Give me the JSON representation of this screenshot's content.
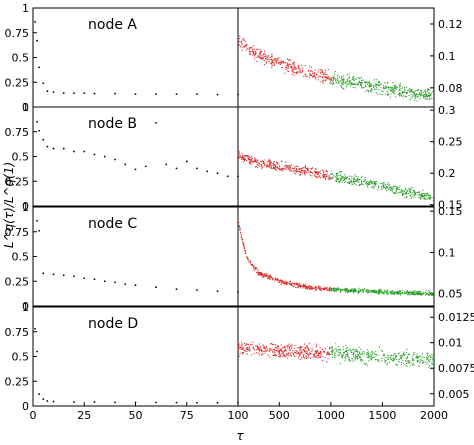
{
  "chart_data": {
    "type": "scatter",
    "ylabel": "L^q(τ)/L^q(1)",
    "xlabel": "τ",
    "left_x_ticks": [
      "0",
      "25",
      "50",
      "75",
      "100"
    ],
    "right_x_ticks": [
      "100",
      "500",
      "1000",
      "1500",
      "2000"
    ],
    "left_x_range": [
      0,
      100
    ],
    "right_x_range": [
      100,
      2000
    ],
    "series_colors": {
      "left": "#000000",
      "right_early": "#dd2222",
      "right_late": "#229922"
    },
    "panels": [
      {
        "label": "node A",
        "left_ylim": [
          0,
          1
        ],
        "left_yticks": [
          "0",
          "0.25",
          "0.5",
          "0.75",
          "1"
        ],
        "right_ylim": [
          0.068,
          0.13
        ],
        "right_yticks": [
          "0.08",
          "0.1",
          "0.12"
        ],
        "left_points": [
          [
            1,
            0.86
          ],
          [
            2,
            0.67
          ],
          [
            3,
            0.4
          ],
          [
            5,
            0.24
          ],
          [
            7,
            0.16
          ],
          [
            10,
            0.15
          ],
          [
            15,
            0.14
          ],
          [
            20,
            0.14
          ],
          [
            25,
            0.14
          ],
          [
            30,
            0.135
          ],
          [
            40,
            0.135
          ],
          [
            50,
            0.13
          ],
          [
            60,
            0.13
          ],
          [
            70,
            0.13
          ],
          [
            80,
            0.13
          ],
          [
            90,
            0.125
          ],
          [
            100,
            0.125
          ]
        ],
        "right_curve": [
          [
            100,
            0.11
          ],
          [
            250,
            0.102
          ],
          [
            500,
            0.095
          ],
          [
            750,
            0.09
          ],
          [
            1000,
            0.086
          ],
          [
            1250,
            0.083
          ],
          [
            1500,
            0.08
          ],
          [
            1750,
            0.077
          ],
          [
            2000,
            0.075
          ]
        ],
        "right_spread": 0.006
      },
      {
        "label": "node B",
        "left_ylim": [
          0,
          1
        ],
        "left_yticks": [
          "0",
          "0.25",
          "0.5",
          "0.75",
          "1"
        ],
        "right_ylim": [
          0.148,
          0.305
        ],
        "right_yticks": [
          "0.15",
          "0.2",
          "0.25",
          "0.3"
        ],
        "left_points": [
          [
            2,
            0.85
          ],
          [
            3,
            0.76
          ],
          [
            5,
            0.67
          ],
          [
            7,
            0.6
          ],
          [
            10,
            0.58
          ],
          [
            15,
            0.58
          ],
          [
            20,
            0.55
          ],
          [
            25,
            0.55
          ],
          [
            30,
            0.52
          ],
          [
            35,
            0.5
          ],
          [
            40,
            0.47
          ],
          [
            45,
            0.42
          ],
          [
            50,
            0.37
          ],
          [
            55,
            0.4
          ],
          [
            60,
            0.84
          ],
          [
            65,
            0.42
          ],
          [
            70,
            0.38
          ],
          [
            75,
            0.45
          ],
          [
            80,
            0.38
          ],
          [
            85,
            0.35
          ],
          [
            90,
            0.33
          ],
          [
            95,
            0.3
          ],
          [
            100,
            0.3
          ]
        ],
        "right_curve": [
          [
            100,
            0.23
          ],
          [
            250,
            0.218
          ],
          [
            500,
            0.211
          ],
          [
            750,
            0.203
          ],
          [
            1000,
            0.195
          ],
          [
            1250,
            0.188
          ],
          [
            1500,
            0.18
          ],
          [
            1750,
            0.17
          ],
          [
            2000,
            0.16
          ]
        ],
        "right_spread": 0.012
      },
      {
        "label": "node C",
        "left_ylim": [
          0,
          1
        ],
        "left_yticks": [
          "0",
          "0.25",
          "0.5",
          "0.75",
          "1"
        ],
        "right_ylim": [
          0.035,
          0.155
        ],
        "right_yticks": [
          "0.05",
          "0.1",
          "0.15"
        ],
        "left_points": [
          [
            2,
            0.86
          ],
          [
            3,
            0.76
          ],
          [
            5,
            0.33
          ],
          [
            10,
            0.32
          ],
          [
            15,
            0.31
          ],
          [
            20,
            0.3
          ],
          [
            25,
            0.28
          ],
          [
            30,
            0.27
          ],
          [
            35,
            0.25
          ],
          [
            40,
            0.24
          ],
          [
            45,
            0.22
          ],
          [
            50,
            0.21
          ],
          [
            60,
            0.19
          ],
          [
            70,
            0.17
          ],
          [
            80,
            0.16
          ],
          [
            90,
            0.15
          ],
          [
            100,
            0.14
          ]
        ],
        "right_curve": [
          [
            100,
            0.14
          ],
          [
            150,
            0.11
          ],
          [
            200,
            0.09
          ],
          [
            300,
            0.075
          ],
          [
            500,
            0.065
          ],
          [
            750,
            0.058
          ],
          [
            1000,
            0.055
          ],
          [
            1500,
            0.052
          ],
          [
            2000,
            0.05
          ]
        ],
        "right_spread": 0.004
      },
      {
        "label": "node D",
        "left_ylim": [
          0,
          1
        ],
        "left_yticks": [
          "0",
          "0.25",
          "0.5",
          "0.75",
          "1"
        ],
        "right_ylim": [
          0.0038,
          0.0135
        ],
        "right_yticks": [
          "0.005",
          "0.0075",
          "0.01",
          "0.0125"
        ],
        "left_points": [
          [
            1,
            0.78
          ],
          [
            2,
            0.55
          ],
          [
            3,
            0.12
          ],
          [
            5,
            0.07
          ],
          [
            7,
            0.05
          ],
          [
            10,
            0.045
          ],
          [
            20,
            0.04
          ],
          [
            30,
            0.04
          ],
          [
            40,
            0.038
          ],
          [
            50,
            0.036
          ],
          [
            60,
            0.035
          ],
          [
            70,
            0.034
          ],
          [
            80,
            0.033
          ],
          [
            90,
            0.032
          ],
          [
            100,
            0.031
          ]
        ],
        "right_curve": [
          [
            100,
            0.0094
          ],
          [
            500,
            0.0092
          ],
          [
            1000,
            0.009
          ],
          [
            1500,
            0.0086
          ],
          [
            2000,
            0.0083
          ]
        ],
        "right_spread": 0.0011
      }
    ]
  }
}
